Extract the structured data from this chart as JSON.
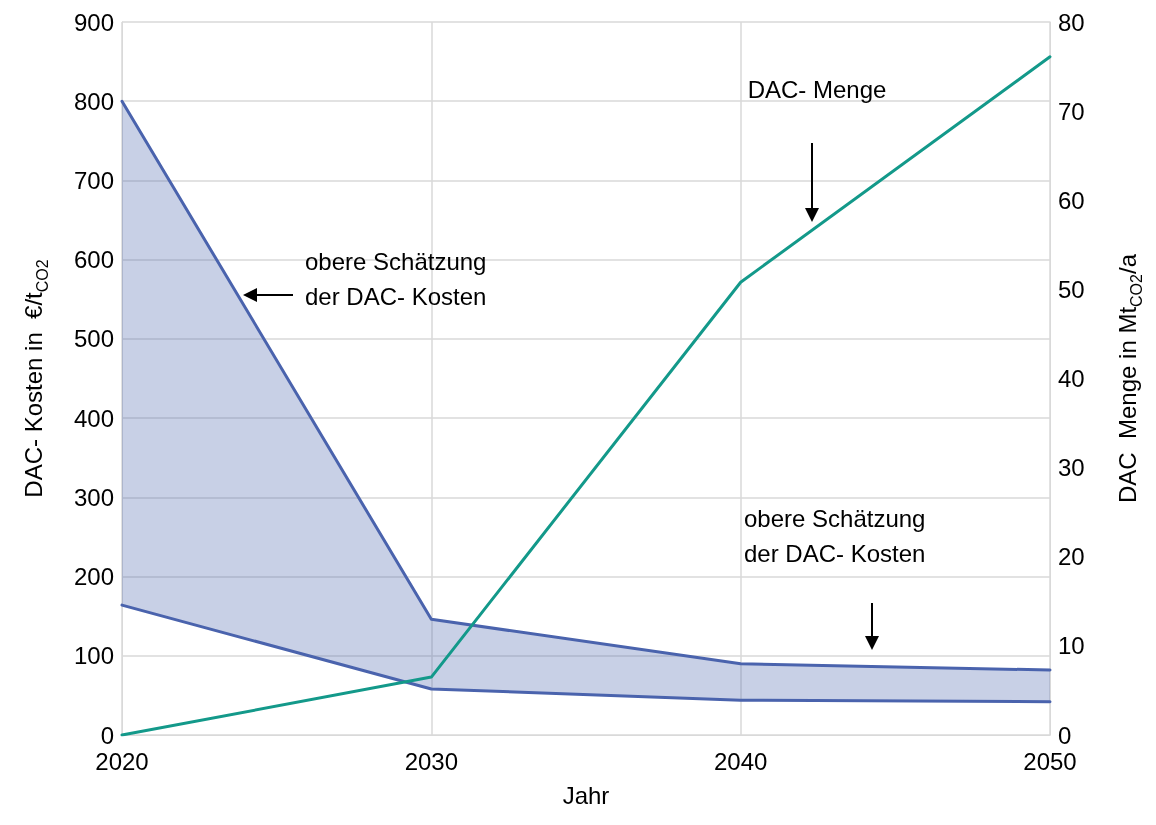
{
  "chart_data": {
    "type": "line",
    "xlabel": "Jahr",
    "ylabel": "DAC- Kosten in  €/t$_{CO2}$",
    "y2label": "DAC  Menge in Mt$_{CO2}$/a",
    "x": [
      2020,
      2030,
      2040,
      2050
    ],
    "xlim": [
      2020,
      2050
    ],
    "xticks": [
      2020,
      2030,
      2040,
      2050
    ],
    "ylim": [
      0,
      900
    ],
    "yticks": [
      0,
      100,
      200,
      300,
      400,
      500,
      600,
      700,
      800,
      900
    ],
    "y2lim": [
      0,
      80
    ],
    "y2ticks": [
      0,
      10,
      20,
      30,
      40,
      50,
      60,
      70,
      80
    ],
    "grid": true,
    "marker": "none",
    "line_style": "solid",
    "series": [
      {
        "color": "#4a63ad",
        "values": [
          800,
          146,
          90,
          82
        ],
        "lower": [
          164,
          58,
          44,
          42
        ],
        "upper": [
          800,
          146,
          90,
          82
        ]
      },
      {
        "color": "#4a63ad",
        "values": [
          164,
          58,
          44,
          42
        ]
      },
      {
        "color": "#13998a",
        "axis": "y2",
        "values": [
          0,
          6.5,
          50.8,
          76.1
        ]
      }
    ],
    "annotations": [
      "obere Schätzung\nder DAC- Kosten",
      "DAC- Menge",
      "obere Schätzung\nder DAC- Kosten"
    ]
  }
}
